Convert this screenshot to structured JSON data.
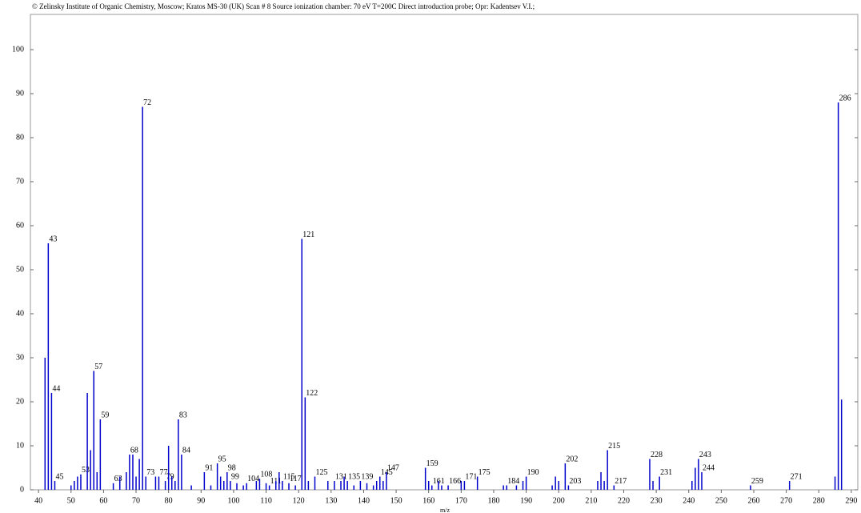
{
  "chart_data": {
    "type": "stem",
    "title": "© Zelinsky Institute of Organic Chemistry, Moscow;   Kratos MS-30 (UK)   Scan # 8   Source ionization chamber: 70 eV  T=200C  Direct introduction probe;    Opr: Kadentsev V.I.;",
    "x_label": "m/z",
    "color": "#0000cc",
    "xlim": [
      37.5,
      292
    ],
    "ylim": [
      0,
      108
    ],
    "xticks": [
      40,
      50,
      60,
      70,
      80,
      90,
      100,
      110,
      120,
      130,
      140,
      150,
      160,
      170,
      180,
      190,
      200,
      210,
      220,
      230,
      240,
      250,
      260,
      270,
      280,
      290
    ],
    "yticks": [
      0,
      10,
      20,
      30,
      40,
      50,
      60,
      70,
      80,
      90,
      100
    ],
    "x": [
      42,
      43,
      44,
      45,
      50,
      51,
      52,
      53,
      55,
      56,
      57,
      58,
      59,
      63,
      65,
      67,
      68,
      69,
      70,
      71,
      72,
      73,
      76,
      77,
      79,
      80,
      81,
      82,
      83,
      84,
      87,
      91,
      93,
      95,
      96,
      97,
      98,
      99,
      101,
      103,
      104,
      107,
      108,
      110,
      111,
      113,
      114,
      115,
      117,
      119,
      121,
      122,
      123,
      125,
      129,
      131,
      133,
      134,
      135,
      137,
      139,
      141,
      143,
      144,
      145,
      146,
      147,
      159,
      160,
      161,
      163,
      164,
      166,
      170,
      171,
      175,
      183,
      184,
      187,
      189,
      190,
      198,
      199,
      200,
      202,
      203,
      212,
      213,
      214,
      215,
      217,
      228,
      229,
      231,
      241,
      242,
      243,
      244,
      259,
      271,
      285,
      286,
      287
    ],
    "values": [
      30,
      56,
      22,
      2,
      1,
      2,
      3,
      3.5,
      22,
      9,
      27,
      4,
      16,
      1.5,
      3,
      4,
      8,
      8,
      3,
      7,
      87,
      3,
      3,
      3,
      2,
      10,
      3,
      2,
      16,
      8,
      1,
      4,
      1,
      6,
      3,
      2,
      4,
      2,
      1.5,
      1,
      1.5,
      2,
      2.5,
      1.5,
      1,
      2,
      4,
      2,
      1.5,
      1,
      57,
      21,
      2,
      3,
      2,
      2,
      2,
      3,
      2,
      1,
      2,
      1.5,
      1,
      2,
      3,
      2,
      4,
      5,
      2,
      1,
      2,
      1,
      1,
      2,
      2,
      3,
      1,
      1,
      1,
      2,
      3,
      1,
      3,
      2,
      6,
      1,
      2,
      4,
      2,
      9,
      1,
      7,
      2,
      3,
      2,
      5,
      7,
      4,
      1,
      2,
      3,
      88,
      20.5
    ],
    "labels": [
      null,
      "43",
      "44",
      "45",
      null,
      null,
      null,
      "53",
      null,
      null,
      "57",
      null,
      "59",
      "63",
      null,
      null,
      "68",
      null,
      null,
      null,
      "72",
      "73",
      null,
      "77",
      "79",
      null,
      null,
      null,
      "83",
      "84",
      null,
      "91",
      null,
      "95",
      null,
      null,
      "98",
      "99",
      null,
      null,
      "104",
      null,
      "108",
      null,
      "111",
      null,
      null,
      "115",
      "117",
      null,
      "121",
      "122",
      null,
      "125",
      null,
      "131",
      null,
      null,
      "135",
      null,
      "139",
      null,
      null,
      null,
      "145",
      null,
      "147",
      "159",
      null,
      "161",
      null,
      null,
      "166",
      null,
      "171",
      "175",
      null,
      "184",
      null,
      null,
      "190",
      null,
      null,
      null,
      "202",
      "203",
      null,
      null,
      null,
      "215",
      "217",
      "228",
      null,
      "231",
      null,
      null,
      "243",
      "244",
      "259",
      "271",
      null,
      "286",
      null
    ]
  }
}
